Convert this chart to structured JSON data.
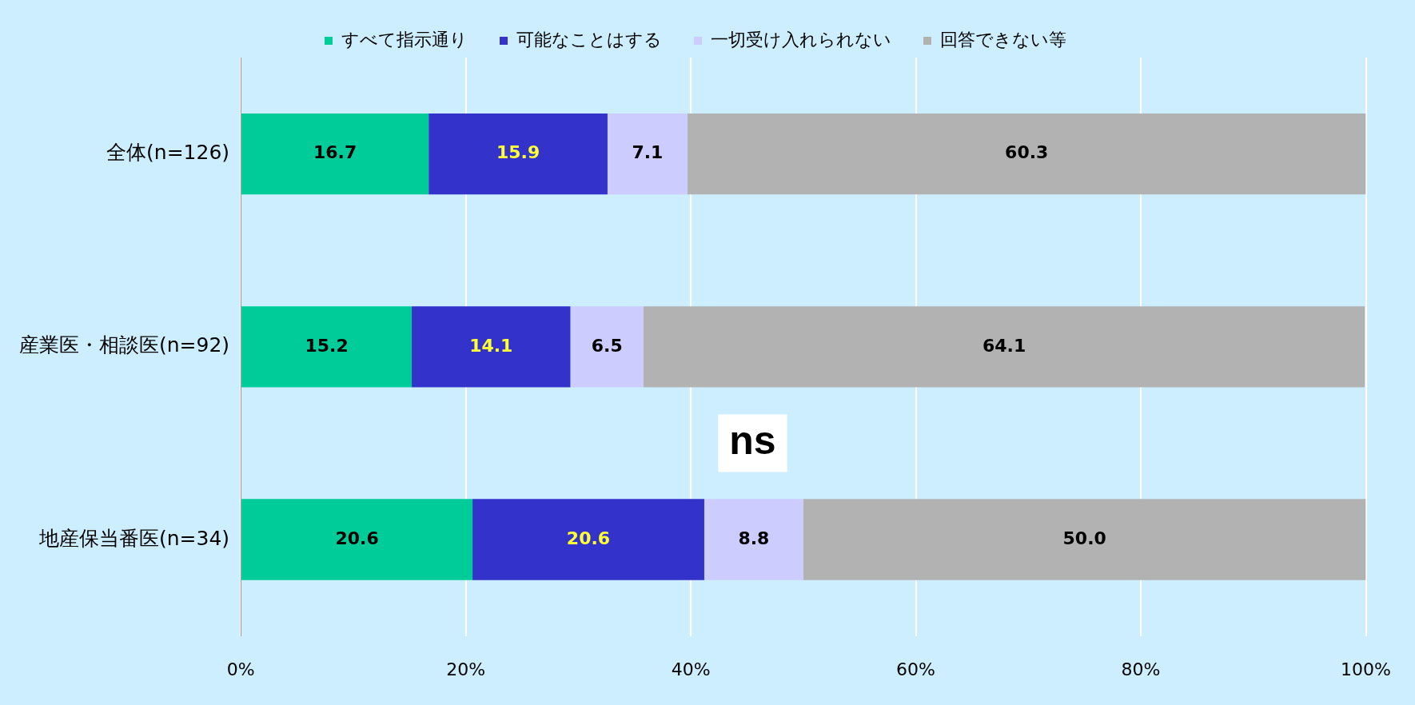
{
  "chart_data": {
    "type": "bar",
    "orientation": "horizontal",
    "stacked": true,
    "categories": [
      "全体(n=126)",
      "産業医・相談医(n=92)",
      "地産保当番医(n=34)"
    ],
    "series": [
      {
        "name": "すべて指示通り",
        "color": "#00cc99",
        "values": [
          16.7,
          15.2,
          20.6
        ],
        "value_labels": [
          "16.7",
          "15.2",
          "20.6"
        ]
      },
      {
        "name": "可能なことはする",
        "color": "#3333cc",
        "values": [
          15.9,
          14.1,
          20.6
        ],
        "value_labels": [
          "15.9",
          "14.1",
          "20.6"
        ]
      },
      {
        "name": "一切受け入れられない",
        "color": "#ccccff",
        "values": [
          7.1,
          6.5,
          8.8
        ],
        "value_labels": [
          "7.1",
          "6.5",
          "8.8"
        ]
      },
      {
        "name": "回答できない等",
        "color": "#b2b2b2",
        "values": [
          60.3,
          64.1,
          50.0
        ],
        "value_labels": [
          "60.3",
          "64.1",
          "50.0"
        ]
      }
    ],
    "xlim": [
      0,
      100
    ],
    "xticks": [
      {
        "value": 0,
        "label": "0%"
      },
      {
        "value": 20,
        "label": "20%"
      },
      {
        "value": 40,
        "label": "40%"
      },
      {
        "value": 60,
        "label": "60%"
      },
      {
        "value": 80,
        "label": "80%"
      },
      {
        "value": 100,
        "label": "100%"
      }
    ],
    "grid": "x",
    "legend": "top",
    "annotations": [
      "ns"
    ]
  }
}
